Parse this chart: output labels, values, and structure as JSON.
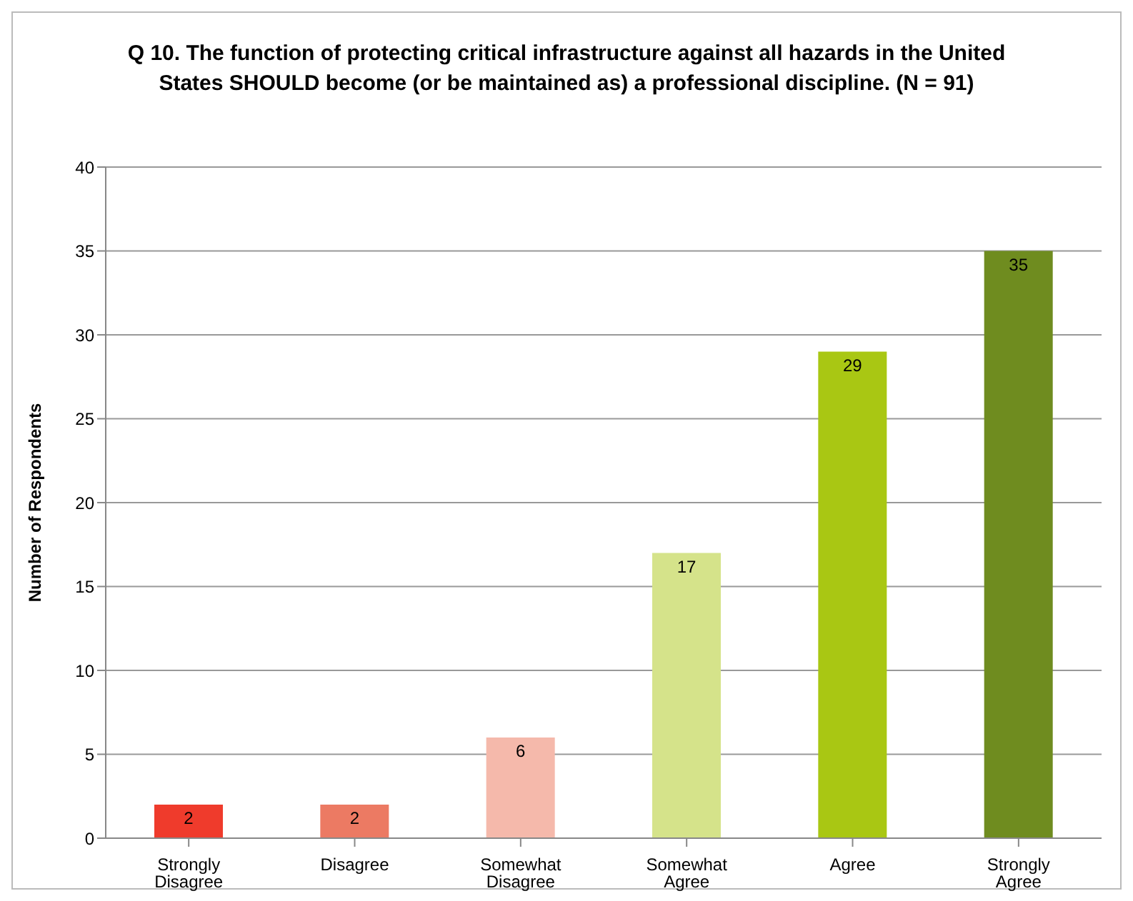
{
  "chart_data": {
    "type": "bar",
    "title": "Q 10.  The function of protecting critical infrastructure against all hazards in the United States SHOULD become (or be maintained as) a professional discipline.  (N = 91)",
    "ylabel": "Number of Respondents",
    "categories": [
      "Strongly Disagree",
      "Disagree",
      "Somewhat Disagree",
      "Somewhat Agree",
      "Agree",
      "Strongly Agree"
    ],
    "values": [
      2,
      2,
      6,
      17,
      29,
      35
    ],
    "colors": [
      "#ef3b2c",
      "#ec7a63",
      "#f5b9ab",
      "#d5e38a",
      "#a9c713",
      "#6f8c1f"
    ],
    "ylim": [
      0,
      40
    ],
    "yticks": [
      0,
      5,
      10,
      15,
      20,
      25,
      30,
      35,
      40
    ],
    "grid": "y",
    "data_labels": true
  }
}
